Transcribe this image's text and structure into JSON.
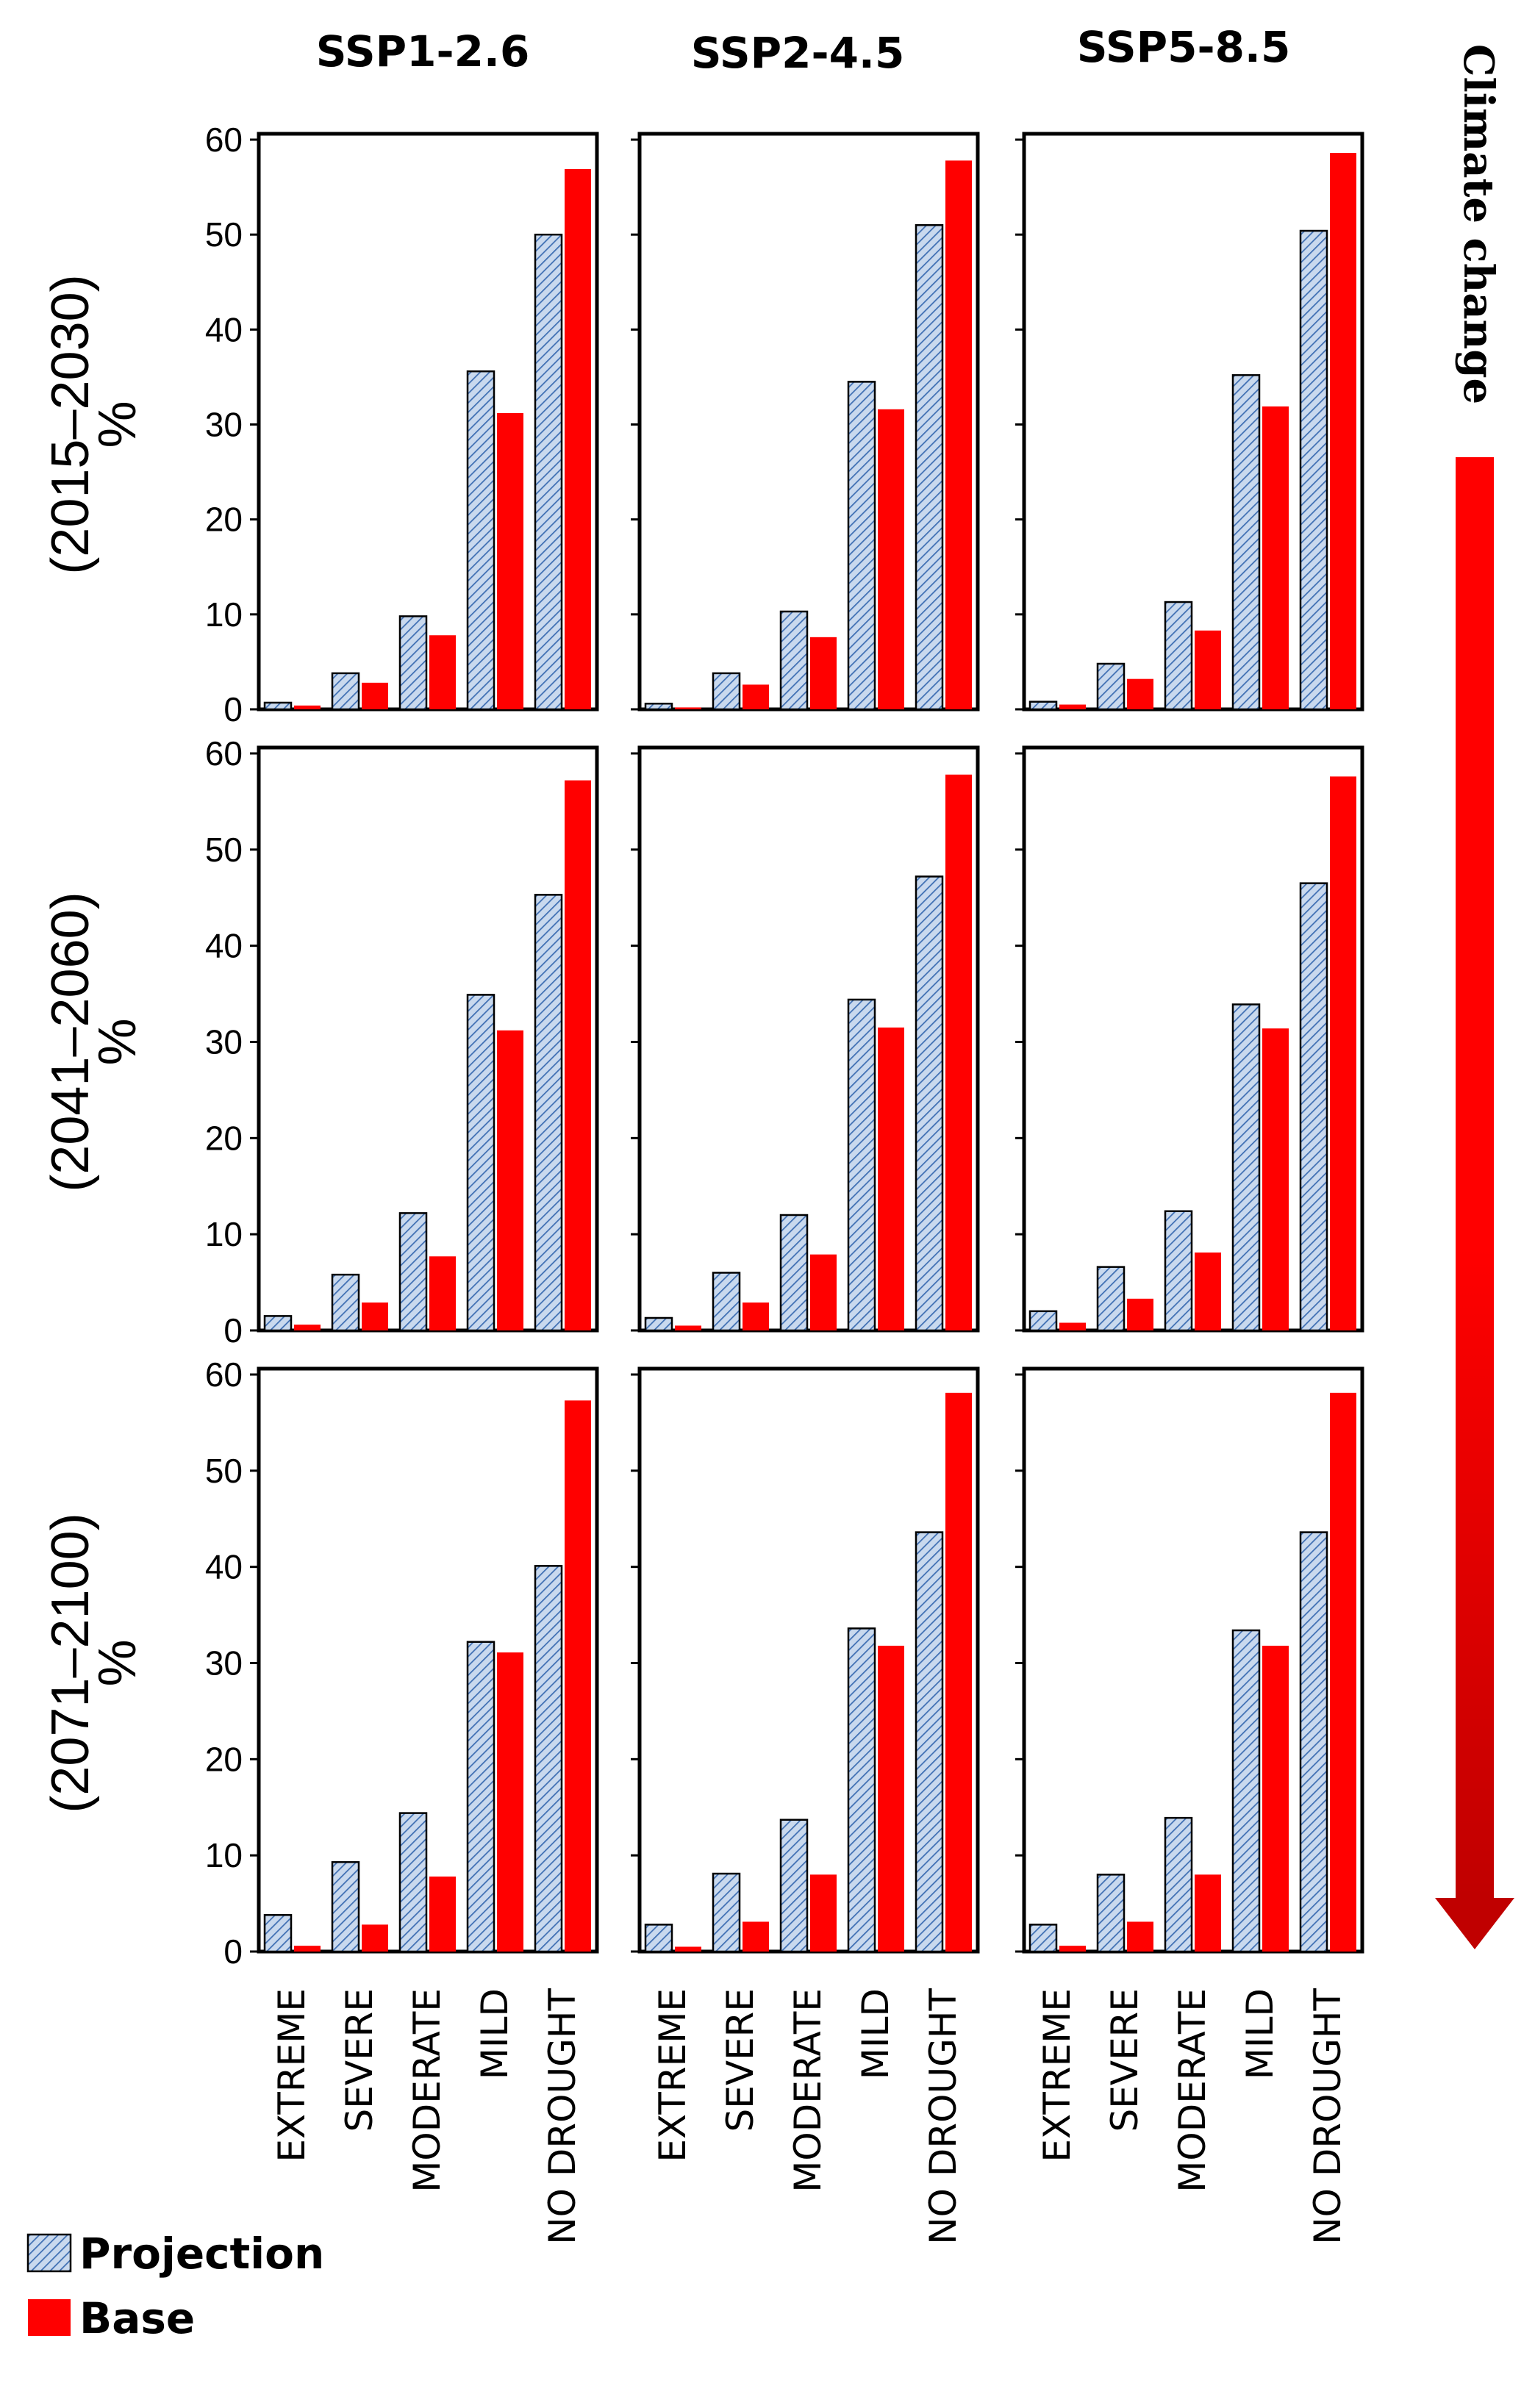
{
  "chart_data": {
    "type": "bar",
    "layout": "3x3 grid of grouped bar charts",
    "columns": [
      "SSP1-2.6",
      "SSP2-4.5",
      "SSP5-8.5"
    ],
    "rows": [
      {
        "period": "(2015–2030)",
        "unit": "%"
      },
      {
        "period": "(2041–2060)",
        "unit": "%"
      },
      {
        "period": "(2071–2100)",
        "unit": "%"
      }
    ],
    "categories": [
      "EXTREME",
      "SEVERE",
      "MODERATE",
      "MILD",
      "NO DROUGHT"
    ],
    "ylim": [
      0,
      60
    ],
    "yticks": [
      "0",
      "10",
      "20",
      "30",
      "40",
      "50",
      "60"
    ],
    "grid": false,
    "legend": {
      "position": "bottom-left",
      "entries": [
        "Projection",
        "Base"
      ]
    },
    "series_style": {
      "Projection": {
        "fill": "#c9d9ee",
        "hatch": "#3f6fb3",
        "stroke": "#000000"
      },
      "Base": {
        "fill": "#ff0000"
      }
    },
    "panels": [
      {
        "row": 0,
        "col": 0,
        "series": [
          {
            "name": "Projection",
            "values": [
              0.7,
              3.8,
              9.8,
              35.6,
              50.0
            ]
          },
          {
            "name": "Base",
            "values": [
              0.4,
              2.8,
              7.8,
              31.2,
              56.9
            ]
          }
        ]
      },
      {
        "row": 0,
        "col": 1,
        "series": [
          {
            "name": "Projection",
            "values": [
              0.6,
              3.8,
              10.3,
              34.5,
              51.0
            ]
          },
          {
            "name": "Base",
            "values": [
              0.2,
              2.6,
              7.6,
              31.6,
              57.8
            ]
          }
        ]
      },
      {
        "row": 0,
        "col": 2,
        "series": [
          {
            "name": "Projection",
            "values": [
              0.8,
              4.8,
              11.3,
              35.2,
              50.4
            ]
          },
          {
            "name": "Base",
            "values": [
              0.5,
              3.2,
              8.3,
              31.9,
              58.6
            ]
          }
        ]
      },
      {
        "row": 1,
        "col": 0,
        "series": [
          {
            "name": "Projection",
            "values": [
              1.5,
              5.8,
              12.2,
              34.9,
              45.3
            ]
          },
          {
            "name": "Base",
            "values": [
              0.6,
              2.9,
              7.7,
              31.2,
              57.2
            ]
          }
        ]
      },
      {
        "row": 1,
        "col": 1,
        "series": [
          {
            "name": "Projection",
            "values": [
              1.3,
              6.0,
              12.0,
              34.4,
              47.2
            ]
          },
          {
            "name": "Base",
            "values": [
              0.5,
              2.9,
              7.9,
              31.5,
              57.8
            ]
          }
        ]
      },
      {
        "row": 1,
        "col": 2,
        "series": [
          {
            "name": "Projection",
            "values": [
              2.0,
              6.6,
              12.4,
              33.9,
              46.5
            ]
          },
          {
            "name": "Base",
            "values": [
              0.8,
              3.3,
              8.1,
              31.4,
              57.6
            ]
          }
        ]
      },
      {
        "row": 2,
        "col": 0,
        "series": [
          {
            "name": "Projection",
            "values": [
              3.8,
              9.3,
              14.4,
              32.2,
              40.1
            ]
          },
          {
            "name": "Base",
            "values": [
              0.6,
              2.8,
              7.8,
              31.1,
              57.3
            ]
          }
        ]
      },
      {
        "row": 2,
        "col": 1,
        "series": [
          {
            "name": "Projection",
            "values": [
              2.8,
              8.1,
              13.7,
              33.6,
              43.6
            ]
          },
          {
            "name": "Base",
            "values": [
              0.5,
              3.1,
              8.0,
              31.8,
              58.1
            ]
          }
        ]
      },
      {
        "row": 2,
        "col": 2,
        "series": [
          {
            "name": "Projection",
            "values": [
              2.8,
              8.0,
              13.9,
              33.4,
              43.6
            ]
          },
          {
            "name": "Base",
            "values": [
              0.6,
              3.1,
              8.0,
              31.8,
              58.1
            ]
          }
        ]
      }
    ]
  },
  "annotation": {
    "arrow_label": "Climate change",
    "arrow_color": "#ff0000",
    "arrow_color_dark": "#c00000"
  }
}
